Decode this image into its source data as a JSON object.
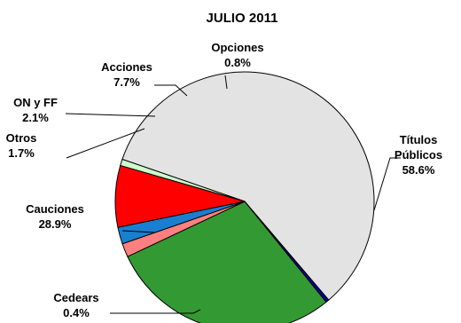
{
  "chart_data": {
    "type": "pie",
    "title": "JULIO 2011",
    "slices": [
      {
        "label": "Títulos Públicos",
        "label_lines": [
          "Títulos",
          "Públicos"
        ],
        "value": 58.6,
        "value_text": "58.6%",
        "color": "#e3e3e3"
      },
      {
        "label": "Cedears",
        "label_lines": [
          "Cedears"
        ],
        "value": 0.4,
        "value_text": "0.4%",
        "color": "#0000a0"
      },
      {
        "label": "Cauciones",
        "label_lines": [
          "Cauciones"
        ],
        "value": 28.9,
        "value_text": "28.9%",
        "color": "#339933"
      },
      {
        "label": "Otros",
        "label_lines": [
          "Otros"
        ],
        "value": 1.7,
        "value_text": "1.7%",
        "color": "#ff8080"
      },
      {
        "label": "ON y FF",
        "label_lines": [
          "ON y FF"
        ],
        "value": 2.1,
        "value_text": "2.1%",
        "color": "#1a7fd0"
      },
      {
        "label": "Acciones",
        "label_lines": [
          "Acciones"
        ],
        "value": 7.7,
        "value_text": "7.7%",
        "color": "#ff0000"
      },
      {
        "label": "Opciones",
        "label_lines": [
          "Opciones"
        ],
        "value": 0.8,
        "value_text": "0.8%",
        "color": "#ccffcc"
      }
    ],
    "legend": "none"
  }
}
